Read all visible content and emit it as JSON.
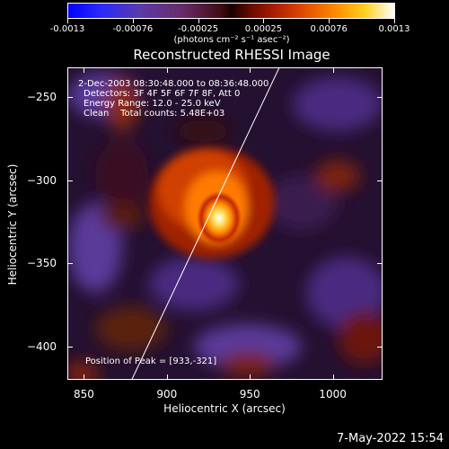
{
  "colorbar": {
    "ticks": [
      "-0.0013",
      "-0.00076",
      "-0.00025",
      "0.00025",
      "0.00076",
      "0.0013"
    ],
    "tick_fractions": [
      0.0,
      0.2,
      0.4,
      0.6,
      0.8,
      1.0
    ],
    "units_label": "(photons cm⁻² s⁻¹ asec⁻²)",
    "gradient_colors": [
      "#0000ff",
      "#5a3aa8",
      "#1a0000",
      "#b02000",
      "#ff8a00",
      "#ffffff"
    ]
  },
  "title": "Reconstructed RHESSI Image",
  "info": {
    "time_range": "2-Dec-2003 08:30:48.000 to 08:36:48.000",
    "detectors": "Detectors: 3F 4F 5F 6F 7F 8F, Att 0",
    "energy": "Energy Range: 12.0 - 25.0 keV",
    "clean": "Clean    Total counts: 5.48E+03",
    "peak": "Position of Peak = [933,-321]"
  },
  "axes": {
    "xlabel": "Heliocentric X (arcsec)",
    "ylabel": "Heliocentric Y (arcsec)",
    "xlim": [
      840,
      1030
    ],
    "ylim": [
      -420,
      -232
    ],
    "xticks": [
      850,
      900,
      950,
      1000
    ],
    "yticks": [
      -250,
      -300,
      -350,
      -400
    ]
  },
  "image": {
    "source_center": [
      930,
      -320
    ],
    "limb_line": [
      [
        878,
        -420
      ],
      [
        967,
        -232
      ]
    ]
  },
  "timestamp": "7-May-2022 15:54"
}
